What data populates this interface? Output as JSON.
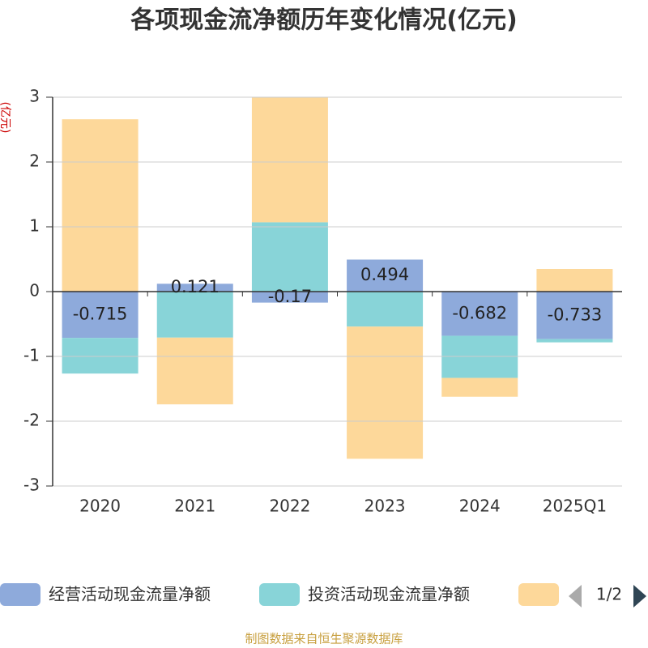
{
  "chart_data": {
    "type": "bar",
    "title": "各项现金流净额历年变化情况(亿元)",
    "y_label": "(亿元)",
    "categories": [
      "2020",
      "2021",
      "2022",
      "2023",
      "2024",
      "2025Q1"
    ],
    "series": [
      {
        "name": "经营活动现金流量净额",
        "color": "#8eaadb",
        "values": [
          -0.715,
          0.121,
          -0.17,
          0.494,
          -0.682,
          -0.733
        ],
        "show_labels": true
      },
      {
        "name": "投资活动现金流量净额",
        "color": "#88d4d8",
        "values": [
          -0.55,
          -0.71,
          1.07,
          -0.54,
          -0.65,
          -0.05
        ]
      },
      {
        "name": null,
        "color": "#fdd89a",
        "values": [
          2.66,
          -1.03,
          1.93,
          -2.04,
          -0.29,
          0.35
        ]
      }
    ],
    "ylim": [
      -3,
      3
    ],
    "yticks": [
      -3,
      -2,
      -1,
      0,
      1,
      2,
      3
    ],
    "grid": true,
    "stacked": true,
    "legend_page": "1/2",
    "source": "制图数据来自恒生聚源数据库"
  }
}
